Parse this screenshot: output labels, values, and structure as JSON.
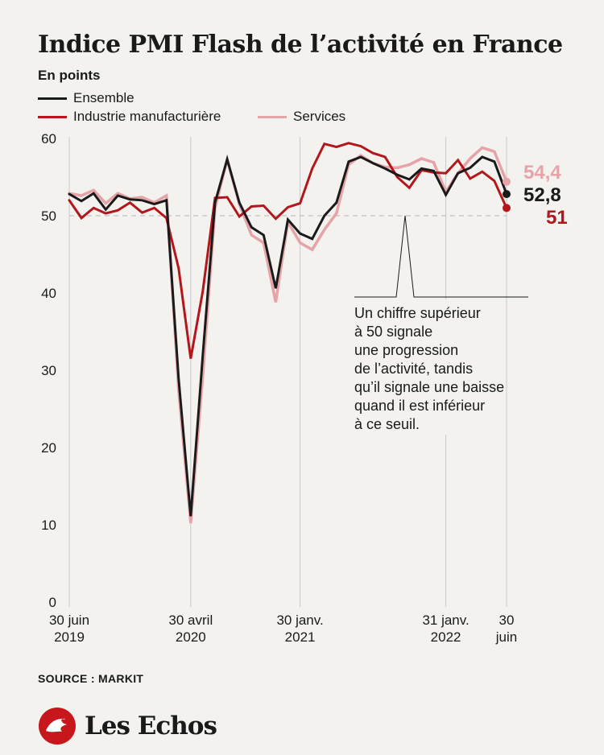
{
  "title": "Indice PMI Flash de l’activité en France",
  "subtitle": "En points",
  "legend": [
    {
      "label": "Ensemble",
      "color": "#1a1a1a"
    },
    {
      "label": "Industrie manufacturière",
      "color": "#b3161b"
    },
    {
      "label": "Services",
      "color": "#e6a3a8"
    }
  ],
  "annotation": [
    "Un chiffre supérieur",
    "à 50 signale",
    "une progression",
    "de l’activité, tandis",
    "qu’il signale une baisse",
    "quand il est inférieur",
    "à ce seuil."
  ],
  "end_labels": {
    "services": "54,4",
    "ensemble": "52,8",
    "industrie": "51"
  },
  "source": "SOURCE : MARKIT",
  "logo": "Les Echos",
  "chart_data": {
    "type": "line",
    "title": "Indice PMI Flash de l’activité en France",
    "ylabel": "En points",
    "ylim": [
      0,
      60
    ],
    "yticks": [
      "0",
      "10",
      "20",
      "30",
      "40",
      "50",
      "60"
    ],
    "reference_line": 50,
    "grid": "vertical",
    "legend_position": "top-left",
    "x": [
      "2019-06",
      "2019-07",
      "2019-08",
      "2019-09",
      "2019-10",
      "2019-11",
      "2019-12",
      "2020-01",
      "2020-02",
      "2020-03",
      "2020-04",
      "2020-05",
      "2020-06",
      "2020-07",
      "2020-08",
      "2020-09",
      "2020-10",
      "2020-11",
      "2020-12",
      "2021-01",
      "2021-02",
      "2021-03",
      "2021-04",
      "2021-05",
      "2021-06",
      "2021-07",
      "2021-08",
      "2021-09",
      "2021-10",
      "2021-11",
      "2021-12",
      "2022-01",
      "2022-02",
      "2022-03",
      "2022-04",
      "2022-05",
      "2022-06"
    ],
    "x_tick_labels": [
      {
        "x": "2019-06",
        "line1": "30 juin",
        "line2": "2019"
      },
      {
        "x": "2020-04",
        "line1": "30 avril",
        "line2": "2020"
      },
      {
        "x": "2021-01",
        "line1": "30 janv.",
        "line2": "2021"
      },
      {
        "x": "2022-01",
        "line1": "31 janv.",
        "line2": "2022"
      },
      {
        "x": "2022-06",
        "line1": "30",
        "line2": "juin"
      }
    ],
    "series": [
      {
        "name": "Ensemble",
        "color": "#1a1a1a",
        "values": [
          52.8,
          51.9,
          52.9,
          50.8,
          52.6,
          52.1,
          52.0,
          51.5,
          52.0,
          28.9,
          11.1,
          32.1,
          51.7,
          57.3,
          51.7,
          48.5,
          47.5,
          40.6,
          49.5,
          47.7,
          47.0,
          50.0,
          51.7,
          57.0,
          57.6,
          56.8,
          56.1,
          55.3,
          54.7,
          56.1,
          55.8,
          52.7,
          55.5,
          56.2,
          57.6,
          57.0,
          52.8
        ]
      },
      {
        "name": "Industrie manufacturière",
        "color": "#b3161b",
        "values": [
          52.0,
          49.7,
          51.0,
          50.3,
          50.7,
          51.7,
          50.4,
          51.0,
          49.7,
          43.2,
          31.5,
          40.3,
          52.3,
          52.4,
          49.9,
          51.2,
          51.3,
          49.6,
          51.1,
          51.6,
          56.1,
          59.3,
          58.9,
          59.4,
          59.0,
          58.1,
          57.6,
          55.0,
          53.6,
          55.9,
          55.6,
          55.5,
          57.2,
          54.8,
          55.7,
          54.5,
          51.0
        ]
      },
      {
        "name": "Services",
        "color": "#e6a3a8",
        "values": [
          52.9,
          52.6,
          53.3,
          51.6,
          52.9,
          52.2,
          52.4,
          51.7,
          52.6,
          27.4,
          10.2,
          29.4,
          51.0,
          57.3,
          51.5,
          47.5,
          46.5,
          38.8,
          49.2,
          46.5,
          45.6,
          48.2,
          50.3,
          56.6,
          57.8,
          56.8,
          56.3,
          56.2,
          56.6,
          57.4,
          56.9,
          53.1,
          55.5,
          57.4,
          58.8,
          58.3,
          54.4
        ]
      }
    ]
  }
}
